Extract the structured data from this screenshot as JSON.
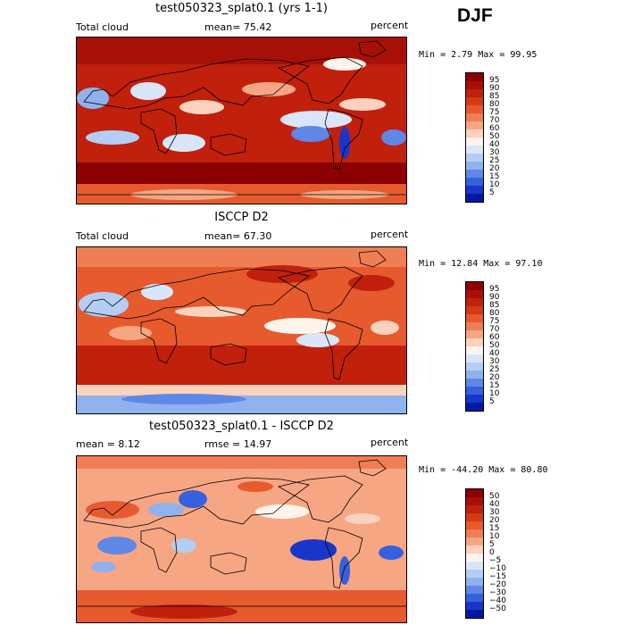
{
  "season": "DJF",
  "panels": [
    {
      "title": "test050323_splat0.1 (yrs 1-1)",
      "left_label": "Total cloud",
      "mid_label": "mean=  75.42",
      "right_label": "percent",
      "minmax": "Min =   2.79 Max =  99.95",
      "colorbar": {
        "labels": [
          "95",
          "90",
          "85",
          "80",
          "75",
          "70",
          "60",
          "50",
          "40",
          "30",
          "25",
          "20",
          "15",
          "10",
          "5"
        ],
        "colors": [
          "#8b0000",
          "#a71006",
          "#c0200c",
          "#d63a14",
          "#e65a2e",
          "#f07e55",
          "#f7a684",
          "#fbd2bd",
          "#fff4ec",
          "#d9e6fa",
          "#b4cdf4",
          "#8fb1ee",
          "#5f87e6",
          "#3760de",
          "#1836c9",
          "#001aa6"
        ]
      }
    },
    {
      "title": "ISCCP D2",
      "left_label": "Total cloud",
      "mid_label": "mean=  67.30",
      "right_label": "percent",
      "minmax": "Min =  12.84 Max =  97.10",
      "colorbar": {
        "labels": [
          "95",
          "90",
          "85",
          "80",
          "75",
          "70",
          "60",
          "50",
          "40",
          "30",
          "25",
          "20",
          "15",
          "10",
          "5"
        ],
        "colors": [
          "#8b0000",
          "#a71006",
          "#c0200c",
          "#d63a14",
          "#e65a2e",
          "#f07e55",
          "#f7a684",
          "#fbd2bd",
          "#fff4ec",
          "#d9e6fa",
          "#b4cdf4",
          "#8fb1ee",
          "#5f87e6",
          "#3760de",
          "#1836c9",
          "#001aa6"
        ]
      }
    },
    {
      "title": "test050323_splat0.1 - ISCCP D2",
      "left_label": "mean =   8.12",
      "mid_label": "rmse =  14.97",
      "right_label": "percent",
      "minmax": "Min = -44.20 Max =  80.80",
      "colorbar": {
        "labels": [
          "50",
          "40",
          "30",
          "20",
          "15",
          "10",
          "5",
          "0",
          "−5",
          "−10",
          "−15",
          "−20",
          "−30",
          "−40",
          "−50"
        ],
        "colors": [
          "#8b0000",
          "#a71006",
          "#c0200c",
          "#d63a14",
          "#e65a2e",
          "#f07e55",
          "#f7a684",
          "#fbd2bd",
          "#fff4ec",
          "#d9e6fa",
          "#b4cdf4",
          "#8fb1ee",
          "#5f87e6",
          "#3760de",
          "#1836c9",
          "#001aa6"
        ]
      }
    }
  ]
}
